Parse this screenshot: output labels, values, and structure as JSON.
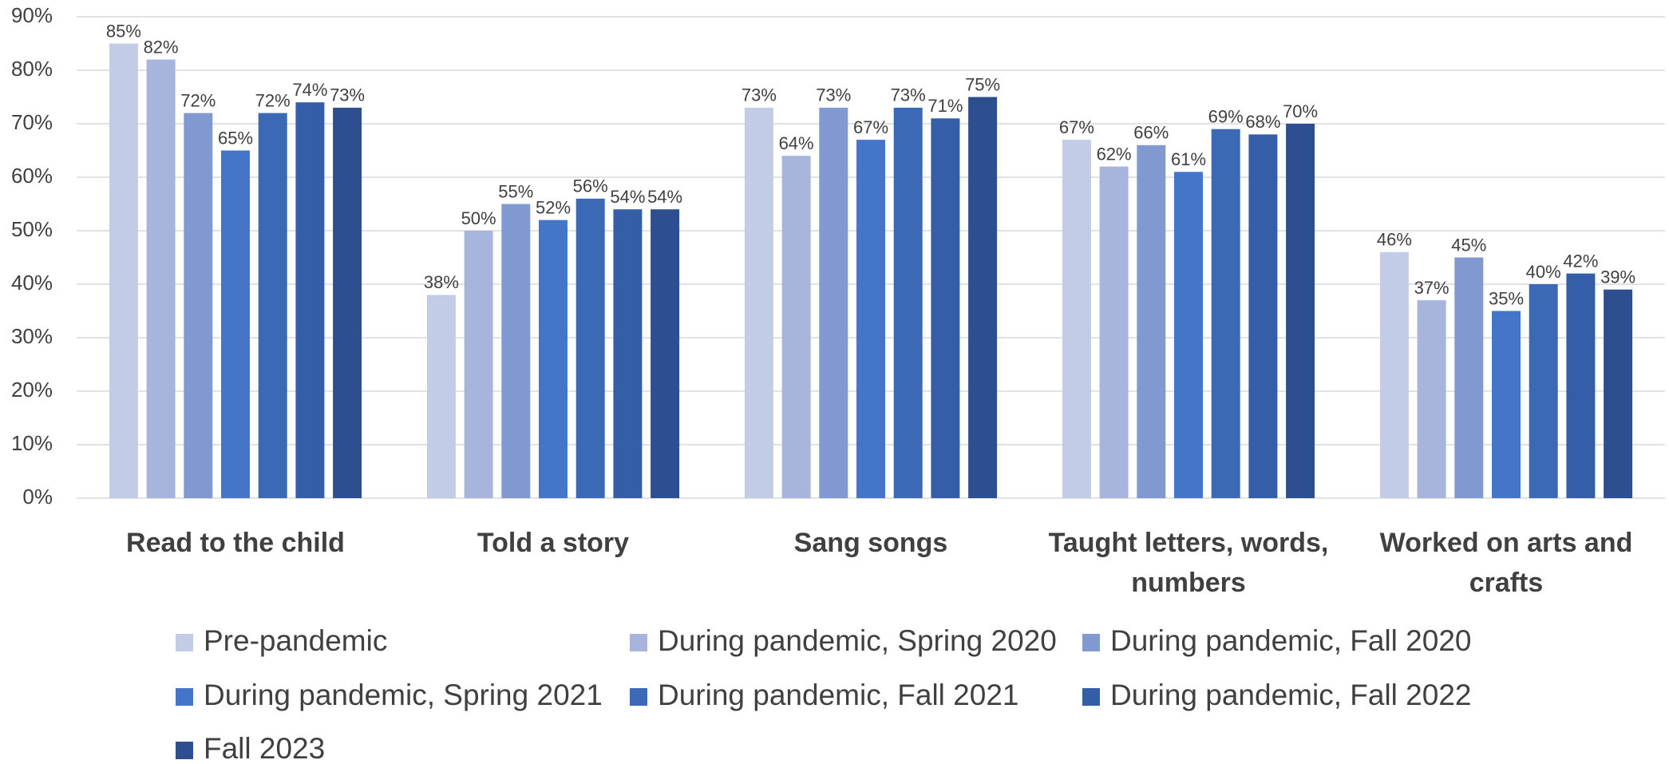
{
  "chart_data": {
    "type": "bar",
    "categories": [
      "Read to the child",
      "Told a story",
      "Sang songs",
      "Taught letters, words, numbers",
      "Worked on arts and crafts"
    ],
    "series": [
      {
        "name": "Pre-pandemic",
        "color": "#c2cce6",
        "values": [
          85,
          38,
          73,
          67,
          46
        ],
        "value_labels": [
          "85%",
          "38%",
          "73%",
          "67%",
          "46%"
        ]
      },
      {
        "name": "During pandemic, Spring 2020",
        "color": "#a7b5dc",
        "values": [
          82,
          50,
          64,
          62,
          37
        ],
        "value_labels": [
          "82%",
          "50%",
          "64%",
          "62%",
          "37%"
        ]
      },
      {
        "name": "During pandemic, Fall 2020",
        "color": "#8199d1",
        "values": [
          72,
          55,
          73,
          66,
          45
        ],
        "value_labels": [
          "72%",
          "55%",
          "73%",
          "66%",
          "45%"
        ]
      },
      {
        "name": "During pandemic, Spring 2021",
        "color": "#4575c8",
        "values": [
          65,
          52,
          67,
          61,
          35
        ],
        "value_labels": [
          "65%",
          "52%",
          "67%",
          "61%",
          "35%"
        ]
      },
      {
        "name": "During pandemic, Fall 2021",
        "color": "#3b69b6",
        "values": [
          72,
          56,
          73,
          69,
          40
        ],
        "value_labels": [
          "72%",
          "56%",
          "73%",
          "69%",
          "40%"
        ]
      },
      {
        "name": "During pandemic, Fall 2022",
        "color": "#345ea7",
        "values": [
          74,
          54,
          71,
          68,
          42
        ],
        "value_labels": [
          "74%",
          "54%",
          "71%",
          "68%",
          "42%"
        ]
      },
      {
        "name": "Fall 2023",
        "color": "#2e4f8f",
        "values": [
          73,
          54,
          75,
          70,
          39
        ],
        "value_labels": [
          "73%",
          "54%",
          "75%",
          "70%",
          "39%"
        ]
      }
    ],
    "ylim": [
      0,
      90
    ],
    "yticks": [
      {
        "value": 0,
        "label": "0%"
      },
      {
        "value": 10,
        "label": "10%"
      },
      {
        "value": 20,
        "label": "20%"
      },
      {
        "value": 30,
        "label": "30%"
      },
      {
        "value": 40,
        "label": "40%"
      },
      {
        "value": 50,
        "label": "50%"
      },
      {
        "value": 60,
        "label": "60%"
      },
      {
        "value": 70,
        "label": "70%"
      },
      {
        "value": 80,
        "label": "80%"
      },
      {
        "value": 90,
        "label": "90%"
      }
    ],
    "grid": true,
    "legend": "bottom"
  }
}
